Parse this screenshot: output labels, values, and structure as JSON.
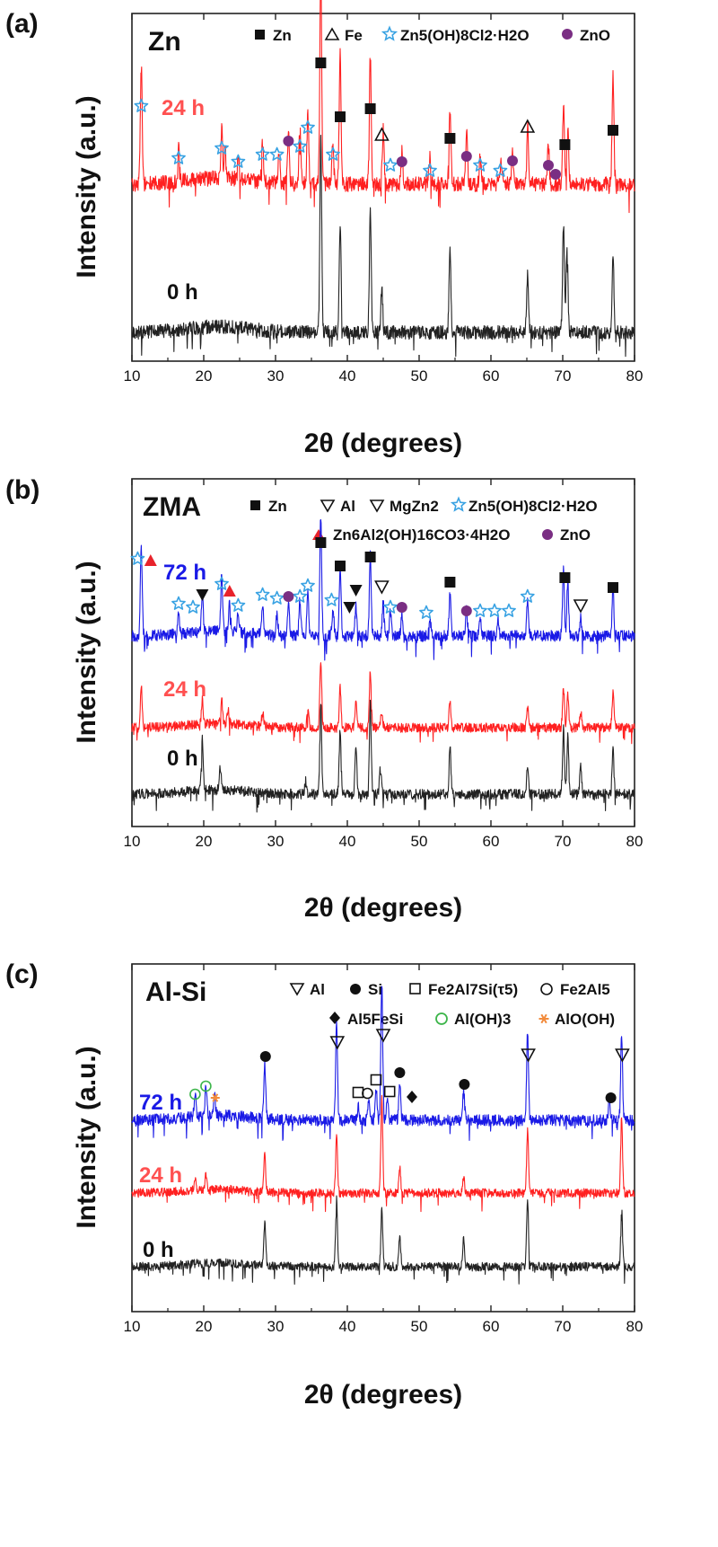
{
  "colors": {
    "star": "#3aa3e3",
    "circle_purple": "#7a2e83",
    "triangle_red": "#e8232b",
    "circle_green": "#3cb54a",
    "asterisk_orange": "#f28b3c",
    "black": "#111111"
  },
  "chart_data": [
    {
      "type": "line",
      "panel_label": "(a)",
      "title": "Zn",
      "xlabel": "2θ (degrees)",
      "ylabel": "Intensity (a.u.)",
      "xlim": [
        10,
        80
      ],
      "xticks": [
        10,
        20,
        30,
        40,
        50,
        60,
        70,
        80
      ],
      "legend": [
        {
          "symbol": "square-filled",
          "color": "#111111",
          "label": "Zn"
        },
        {
          "symbol": "triangle-up-open",
          "color": "#111111",
          "label": "Fe"
        },
        {
          "symbol": "star",
          "color": "#3aa3e3",
          "label": "Zn5(OH)8Cl2·H2O"
        },
        {
          "symbol": "circle-filled",
          "color": "#7a2e83",
          "label": "ZnO"
        }
      ],
      "series": [
        {
          "name": "24 h",
          "color": "#ff2020",
          "peaks": [
            [
              11.3,
              0.55
            ],
            [
              16.5,
              0.15
            ],
            [
              22.5,
              0.22
            ],
            [
              23.0,
              0.15
            ],
            [
              24.8,
              0.12
            ],
            [
              28.2,
              0.18
            ],
            [
              30.5,
              0.14
            ],
            [
              31.8,
              0.22
            ],
            [
              33.4,
              0.26
            ],
            [
              34.5,
              0.32
            ],
            [
              36.3,
              1.0
            ],
            [
              38.0,
              0.2
            ],
            [
              39.0,
              0.6
            ],
            [
              43.2,
              0.62
            ],
            [
              45.0,
              0.25
            ],
            [
              47.6,
              0.15
            ],
            [
              51.5,
              0.12
            ],
            [
              54.3,
              0.34
            ],
            [
              56.6,
              0.24
            ],
            [
              58.5,
              0.12
            ],
            [
              61.4,
              0.1
            ],
            [
              63.0,
              0.14
            ],
            [
              65.1,
              0.28
            ],
            [
              68.0,
              0.18
            ],
            [
              70.1,
              0.36
            ],
            [
              70.7,
              0.28
            ],
            [
              77.0,
              0.5
            ]
          ]
        },
        {
          "name": "0 h",
          "color": "#222222",
          "peaks": [
            [
              36.3,
              1.0
            ],
            [
              39.0,
              0.55
            ],
            [
              43.2,
              0.6
            ],
            [
              44.8,
              0.22
            ],
            [
              54.3,
              0.42
            ],
            [
              65.1,
              0.3
            ],
            [
              70.1,
              0.55
            ],
            [
              70.6,
              0.45
            ],
            [
              77.0,
              0.4
            ]
          ]
        }
      ],
      "annotations": [
        {
          "symbol": "star",
          "color": "#3aa3e3",
          "x": [
            11.3,
            16.5,
            22.5,
            24.8,
            28.2,
            30.2,
            33.4,
            34.5,
            38.0,
            46.0,
            51.5,
            58.5,
            61.3
          ]
        },
        {
          "symbol": "circle-filled",
          "color": "#7a2e83",
          "x": [
            31.8,
            47.6,
            56.6,
            63.0,
            68.0,
            69.0
          ]
        },
        {
          "symbol": "square-filled",
          "color": "#111111",
          "x": [
            36.3,
            39.0,
            43.2,
            54.3,
            70.3,
            77.0
          ]
        },
        {
          "symbol": "triangle-up-open",
          "color": "#111111",
          "x": [
            44.8,
            65.1
          ]
        }
      ]
    },
    {
      "type": "line",
      "panel_label": "(b)",
      "title": "ZMA",
      "xlabel": "2θ (degrees)",
      "ylabel": "Intensity (a.u.)",
      "xlim": [
        10,
        80
      ],
      "xticks": [
        10,
        20,
        30,
        40,
        50,
        60,
        70,
        80
      ],
      "legend": [
        {
          "symbol": "square-filled",
          "color": "#111111",
          "label": "Zn"
        },
        {
          "symbol": "triangle-down-filled",
          "color": "#111111",
          "label": "Al"
        },
        {
          "symbol": "triangle-down-open",
          "color": "#111111",
          "label": "MgZn2"
        },
        {
          "symbol": "star",
          "color": "#3aa3e3",
          "label": "Zn5(OH)8Cl2·H2O"
        },
        {
          "symbol": "triangle-up-filled",
          "color": "#e8232b",
          "label": "Zn6Al2(OH)16CO3·4H2O"
        },
        {
          "symbol": "circle-filled",
          "color": "#7a2e83",
          "label": "ZnO"
        }
      ],
      "series": [
        {
          "name": "72 h",
          "color": "#1a1ae6",
          "peaks": [
            [
              11.3,
              0.55
            ],
            [
              16.5,
              0.12
            ],
            [
              19.8,
              0.22
            ],
            [
              22.5,
              0.35
            ],
            [
              23.6,
              0.18
            ],
            [
              24.8,
              0.12
            ],
            [
              28.2,
              0.18
            ],
            [
              30.2,
              0.12
            ],
            [
              31.8,
              0.2
            ],
            [
              33.4,
              0.22
            ],
            [
              34.5,
              0.26
            ],
            [
              36.3,
              0.75
            ],
            [
              38.0,
              0.18
            ],
            [
              39.0,
              0.42
            ],
            [
              41.2,
              0.18
            ],
            [
              43.2,
              0.5
            ],
            [
              45.0,
              0.22
            ],
            [
              46.0,
              0.15
            ],
            [
              47.6,
              0.14
            ],
            [
              51.5,
              0.1
            ],
            [
              54.3,
              0.28
            ],
            [
              56.6,
              0.16
            ],
            [
              58.5,
              0.1
            ],
            [
              61.0,
              0.1
            ],
            [
              65.1,
              0.22
            ],
            [
              70.1,
              0.4
            ],
            [
              70.7,
              0.34
            ],
            [
              72.5,
              0.12
            ],
            [
              77.0,
              0.3
            ]
          ]
        },
        {
          "name": "24 h",
          "color": "#ff2020",
          "peaks": [
            [
              11.3,
              0.32
            ],
            [
              19.8,
              0.18
            ],
            [
              22.5,
              0.18
            ],
            [
              23.4,
              0.1
            ],
            [
              28.2,
              0.1
            ],
            [
              34.5,
              0.15
            ],
            [
              36.3,
              0.5
            ],
            [
              39.0,
              0.3
            ],
            [
              41.2,
              0.22
            ],
            [
              43.2,
              0.42
            ],
            [
              44.8,
              0.12
            ],
            [
              54.3,
              0.2
            ],
            [
              65.1,
              0.15
            ],
            [
              70.1,
              0.3
            ],
            [
              70.7,
              0.25
            ],
            [
              72.5,
              0.12
            ],
            [
              77.0,
              0.26
            ]
          ]
        },
        {
          "name": "0 h",
          "color": "#222222",
          "peaks": [
            [
              19.8,
              0.35
            ],
            [
              22.3,
              0.16
            ],
            [
              34.2,
              0.1
            ],
            [
              36.3,
              0.65
            ],
            [
              39.0,
              0.45
            ],
            [
              41.2,
              0.32
            ],
            [
              43.2,
              0.62
            ],
            [
              44.6,
              0.18
            ],
            [
              54.3,
              0.34
            ],
            [
              65.1,
              0.2
            ],
            [
              70.1,
              0.45
            ],
            [
              70.7,
              0.4
            ],
            [
              72.5,
              0.2
            ],
            [
              77.0,
              0.3
            ]
          ]
        }
      ],
      "annotations": [
        {
          "symbol": "star",
          "color": "#3aa3e3",
          "x": [
            10.8,
            16.5,
            18.5,
            22.5,
            24.8,
            28.2,
            30.2,
            33.4,
            34.5,
            37.8,
            46.0,
            51.0,
            58.5,
            60.5,
            62.5,
            65.1
          ]
        },
        {
          "symbol": "triangle-up-filled",
          "color": "#e8232b",
          "x": [
            12.6,
            23.6
          ]
        },
        {
          "symbol": "triangle-down-filled",
          "color": "#111111",
          "x": [
            19.8,
            40.3,
            41.2
          ]
        },
        {
          "symbol": "circle-filled",
          "color": "#7a2e83",
          "x": [
            31.8,
            47.6,
            56.6
          ]
        },
        {
          "symbol": "square-filled",
          "color": "#111111",
          "x": [
            36.3,
            39.0,
            43.2,
            54.3,
            70.3,
            77.0
          ]
        },
        {
          "symbol": "triangle-down-open",
          "color": "#111111",
          "x": [
            44.8,
            72.5
          ]
        }
      ]
    },
    {
      "type": "line",
      "panel_label": "(c)",
      "title": "Al-Si",
      "xlabel": "2θ (degrees)",
      "ylabel": "Intensity (a.u.)",
      "xlim": [
        10,
        80
      ],
      "xticks": [
        10,
        20,
        30,
        40,
        50,
        60,
        70,
        80
      ],
      "legend": [
        {
          "symbol": "triangle-down-open",
          "color": "#111111",
          "label": "Al"
        },
        {
          "symbol": "circle-filled",
          "color": "#111111",
          "label": "Si"
        },
        {
          "symbol": "square-open",
          "color": "#111111",
          "label": "Fe2Al7Si(τ5)"
        },
        {
          "symbol": "circle-open",
          "color": "#111111",
          "label": "Fe2Al5"
        },
        {
          "symbol": "diamond-filled",
          "color": "#111111",
          "label": "Al5FeSi"
        },
        {
          "symbol": "circle-open",
          "color": "#3cb54a",
          "label": "Al(OH)3"
        },
        {
          "symbol": "asterisk",
          "color": "#f28b3c",
          "label": "AlO(OH)"
        }
      ],
      "series": [
        {
          "name": "72 h",
          "color": "#1a1ae6",
          "peaks": [
            [
              18.8,
              0.15
            ],
            [
              20.3,
              0.18
            ],
            [
              21.5,
              0.12
            ],
            [
              28.5,
              0.35
            ],
            [
              38.5,
              0.6
            ],
            [
              41.5,
              0.1
            ],
            [
              43.0,
              0.12
            ],
            [
              44.0,
              0.2
            ],
            [
              44.8,
              0.85
            ],
            [
              45.6,
              0.15
            ],
            [
              47.3,
              0.22
            ],
            [
              56.2,
              0.18
            ],
            [
              65.1,
              0.55
            ],
            [
              76.5,
              0.12
            ],
            [
              78.2,
              0.55
            ]
          ]
        },
        {
          "name": "24 h",
          "color": "#ff2020",
          "peaks": [
            [
              18.8,
              0.1
            ],
            [
              20.3,
              0.12
            ],
            [
              28.5,
              0.3
            ],
            [
              38.5,
              0.45
            ],
            [
              44.8,
              0.75
            ],
            [
              47.3,
              0.2
            ],
            [
              56.2,
              0.12
            ],
            [
              65.1,
              0.5
            ],
            [
              78.2,
              0.6
            ]
          ]
        },
        {
          "name": "0 h",
          "color": "#222222",
          "peaks": [
            [
              28.5,
              0.35
            ],
            [
              38.5,
              0.55
            ],
            [
              44.8,
              0.45
            ],
            [
              47.3,
              0.25
            ],
            [
              56.2,
              0.22
            ],
            [
              65.1,
              0.55
            ],
            [
              78.2,
              0.45
            ]
          ]
        }
      ],
      "annotations": [
        {
          "symbol": "circle-open",
          "color": "#3cb54a",
          "x": [
            18.8,
            20.3
          ]
        },
        {
          "symbol": "asterisk",
          "color": "#f28b3c",
          "x": [
            21.6
          ]
        },
        {
          "symbol": "circle-filled",
          "color": "#111111",
          "x": [
            28.6,
            47.3,
            56.3,
            76.7
          ]
        },
        {
          "symbol": "triangle-down-open",
          "color": "#111111",
          "x": [
            38.6,
            45.0,
            65.2,
            78.3
          ]
        },
        {
          "symbol": "square-open",
          "color": "#111111",
          "x": [
            41.5,
            44.0,
            45.9
          ]
        },
        {
          "symbol": "circle-open",
          "color": "#111111",
          "x": [
            42.8
          ]
        },
        {
          "symbol": "diamond-filled",
          "color": "#111111",
          "x": [
            49.0
          ]
        }
      ]
    }
  ]
}
